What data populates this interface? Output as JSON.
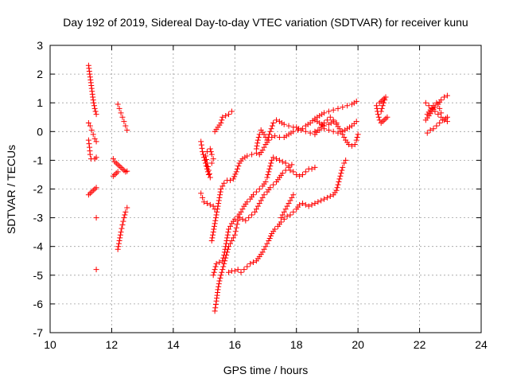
{
  "chart_data": {
    "type": "scatter",
    "title": "Day 192 of 2019, Sidereal Day-to-day VTEC variation (SDTVAR) for receiver kunu",
    "xlabel": "GPS time / hours",
    "ylabel": "SDTVAR / TECUs",
    "xlim": [
      10,
      24
    ],
    "ylim": [
      -7,
      3
    ],
    "xticks": [
      "10",
      "12",
      "14",
      "16",
      "18",
      "20",
      "22",
      "24"
    ],
    "yticks": [
      "-7",
      "-6",
      "-5",
      "-4",
      "-3",
      "-2",
      "-1",
      "0",
      "1",
      "2",
      "3"
    ],
    "grid": true,
    "marker": "+",
    "color": "#ff0000",
    "segments": [
      [
        [
          11.25,
          2.3
        ],
        [
          11.3,
          1.9
        ],
        [
          11.35,
          1.5
        ],
        [
          11.4,
          1.1
        ],
        [
          11.45,
          0.8
        ],
        [
          11.5,
          0.6
        ]
      ],
      [
        [
          11.25,
          0.3
        ],
        [
          11.3,
          0.2
        ],
        [
          11.35,
          0.05
        ],
        [
          11.4,
          -0.1
        ],
        [
          11.45,
          -0.25
        ],
        [
          11.5,
          -0.35
        ]
      ],
      [
        [
          11.25,
          -0.3
        ],
        [
          11.28,
          -0.55
        ],
        [
          11.3,
          -0.8
        ],
        [
          11.33,
          -0.95
        ]
      ],
      [
        [
          11.45,
          -0.95
        ],
        [
          11.5,
          -0.9
        ]
      ],
      [
        [
          11.25,
          -2.2
        ],
        [
          11.3,
          -2.15
        ],
        [
          11.35,
          -2.1
        ],
        [
          11.4,
          -2.05
        ],
        [
          11.45,
          -2.0
        ],
        [
          11.5,
          -1.95
        ]
      ],
      [
        [
          11.5,
          -3.0
        ]
      ],
      [
        [
          11.5,
          -4.8
        ]
      ],
      [
        [
          12.2,
          0.95
        ],
        [
          12.25,
          0.8
        ],
        [
          12.3,
          0.65
        ],
        [
          12.35,
          0.5
        ],
        [
          12.4,
          0.35
        ],
        [
          12.45,
          0.2
        ],
        [
          12.5,
          0.05
        ]
      ],
      [
        [
          12.05,
          -0.95
        ],
        [
          12.1,
          -1.05
        ],
        [
          12.15,
          -1.1
        ],
        [
          12.2,
          -1.15
        ],
        [
          12.25,
          -1.2
        ],
        [
          12.3,
          -1.25
        ],
        [
          12.35,
          -1.3
        ],
        [
          12.4,
          -1.35
        ],
        [
          12.45,
          -1.4
        ],
        [
          12.5,
          -1.38
        ]
      ],
      [
        [
          12.05,
          -1.55
        ],
        [
          12.1,
          -1.5
        ],
        [
          12.15,
          -1.45
        ],
        [
          12.2,
          -1.4
        ]
      ],
      [
        [
          12.2,
          -4.1
        ],
        [
          12.25,
          -3.8
        ],
        [
          12.3,
          -3.5
        ],
        [
          12.35,
          -3.25
        ],
        [
          12.4,
          -3.0
        ],
        [
          12.45,
          -2.8
        ],
        [
          12.5,
          -2.65
        ]
      ],
      [
        [
          14.9,
          -0.35
        ],
        [
          14.95,
          -0.7
        ],
        [
          15.0,
          -0.9
        ],
        [
          15.05,
          -1.1
        ],
        [
          15.1,
          -1.3
        ],
        [
          15.15,
          -1.5
        ],
        [
          15.2,
          -1.6
        ],
        [
          15.15,
          -1.35
        ],
        [
          15.1,
          -1.1
        ],
        [
          15.05,
          -0.85
        ],
        [
          15.1,
          -0.7
        ],
        [
          15.2,
          -0.6
        ],
        [
          15.25,
          -0.8
        ],
        [
          15.3,
          -0.95
        ],
        [
          15.25,
          -1.1
        ]
      ],
      [
        [
          14.9,
          -2.15
        ],
        [
          14.95,
          -2.3
        ],
        [
          15.0,
          -2.45
        ],
        [
          15.1,
          -2.5
        ],
        [
          15.2,
          -2.55
        ],
        [
          15.3,
          -2.6
        ],
        [
          15.35,
          -2.7
        ]
      ],
      [
        [
          15.35,
          0.0
        ],
        [
          15.45,
          0.15
        ],
        [
          15.55,
          0.3
        ],
        [
          15.6,
          0.5
        ],
        [
          15.7,
          0.55
        ],
        [
          15.8,
          0.6
        ],
        [
          15.9,
          0.7
        ]
      ],
      [
        [
          15.25,
          -3.8
        ],
        [
          15.3,
          -3.5
        ],
        [
          15.35,
          -3.2
        ],
        [
          15.4,
          -2.9
        ],
        [
          15.45,
          -2.6
        ],
        [
          15.5,
          -2.3
        ],
        [
          15.55,
          -2.0
        ],
        [
          15.65,
          -1.8
        ],
        [
          15.75,
          -1.7
        ],
        [
          15.85,
          -1.7
        ],
        [
          15.95,
          -1.65
        ],
        [
          16.05,
          -1.4
        ],
        [
          16.15,
          -1.1
        ],
        [
          16.25,
          -0.95
        ],
        [
          16.4,
          -0.85
        ],
        [
          16.55,
          -0.8
        ],
        [
          16.7,
          -0.75
        ],
        [
          16.8,
          -0.8
        ],
        [
          16.9,
          -0.65
        ],
        [
          17.0,
          -0.45
        ],
        [
          17.1,
          -0.3
        ],
        [
          17.2,
          -0.2
        ],
        [
          17.3,
          -0.15
        ],
        [
          17.45,
          -0.2
        ],
        [
          17.6,
          -0.2
        ],
        [
          17.75,
          -0.1
        ],
        [
          17.9,
          0.0
        ],
        [
          18.05,
          0.05
        ],
        [
          18.2,
          0.1
        ],
        [
          18.3,
          0.2
        ],
        [
          18.45,
          0.3
        ],
        [
          18.6,
          0.45
        ],
        [
          18.75,
          0.55
        ],
        [
          18.9,
          0.65
        ],
        [
          19.05,
          0.7
        ],
        [
          19.2,
          0.75
        ],
        [
          19.35,
          0.8
        ],
        [
          19.5,
          0.85
        ],
        [
          19.65,
          0.9
        ],
        [
          19.8,
          0.95
        ],
        [
          19.95,
          1.05
        ]
      ],
      [
        [
          16.7,
          -0.6
        ],
        [
          16.75,
          -0.3
        ],
        [
          16.8,
          -0.1
        ],
        [
          16.85,
          0.05
        ],
        [
          16.95,
          -0.1
        ],
        [
          17.05,
          -0.3
        ],
        [
          17.15,
          0.0
        ],
        [
          17.25,
          0.3
        ],
        [
          17.35,
          0.4
        ],
        [
          17.45,
          0.35
        ],
        [
          17.6,
          0.25
        ],
        [
          17.75,
          0.2
        ],
        [
          17.9,
          0.15
        ],
        [
          18.0,
          0.15
        ],
        [
          18.15,
          0.05
        ],
        [
          18.3,
          0.0
        ],
        [
          18.45,
          -0.05
        ],
        [
          18.6,
          0.0
        ],
        [
          18.75,
          0.05
        ],
        [
          18.9,
          0.1
        ],
        [
          19.05,
          0.05
        ],
        [
          19.2,
          0.0
        ],
        [
          19.35,
          -0.05
        ],
        [
          19.5,
          0.0
        ],
        [
          19.65,
          0.1
        ],
        [
          19.8,
          0.2
        ],
        [
          19.95,
          0.35
        ]
      ],
      [
        [
          18.6,
          0.4
        ],
        [
          18.75,
          0.3
        ],
        [
          18.9,
          0.2
        ],
        [
          19.05,
          0.25
        ],
        [
          19.2,
          0.35
        ],
        [
          19.3,
          0.25
        ],
        [
          19.4,
          0.1
        ],
        [
          19.5,
          -0.1
        ],
        [
          19.6,
          -0.3
        ],
        [
          19.7,
          -0.45
        ],
        [
          19.8,
          -0.5
        ],
        [
          19.9,
          -0.45
        ],
        [
          19.95,
          -0.3
        ],
        [
          20.0,
          -0.1
        ]
      ],
      [
        [
          18.6,
          -0.1
        ],
        [
          18.7,
          0.05
        ],
        [
          18.8,
          0.15
        ],
        [
          18.9,
          0.3
        ],
        [
          19.0,
          0.4
        ],
        [
          19.1,
          0.5
        ],
        [
          19.2,
          0.4
        ],
        [
          19.3,
          0.3
        ]
      ],
      [
        [
          15.3,
          -5.0
        ],
        [
          15.35,
          -4.8
        ],
        [
          15.4,
          -4.6
        ],
        [
          15.5,
          -4.55
        ],
        [
          15.6,
          -4.5
        ],
        [
          15.65,
          -4.3
        ],
        [
          15.7,
          -4.0
        ],
        [
          15.75,
          -3.7
        ],
        [
          15.8,
          -3.4
        ],
        [
          15.9,
          -3.2
        ],
        [
          16.0,
          -3.05
        ],
        [
          16.1,
          -2.95
        ],
        [
          16.2,
          -2.8
        ],
        [
          16.3,
          -2.6
        ],
        [
          16.4,
          -2.45
        ],
        [
          16.5,
          -2.35
        ],
        [
          16.6,
          -2.2
        ],
        [
          16.7,
          -2.1
        ],
        [
          16.8,
          -2.0
        ],
        [
          16.9,
          -1.9
        ],
        [
          17.0,
          -1.75
        ],
        [
          17.05,
          -1.6
        ],
        [
          17.1,
          -1.4
        ],
        [
          17.15,
          -1.2
        ],
        [
          17.2,
          -1.0
        ],
        [
          17.25,
          -0.9
        ],
        [
          17.35,
          -0.95
        ],
        [
          17.45,
          -1.0
        ],
        [
          17.55,
          -1.05
        ],
        [
          17.65,
          -1.1
        ],
        [
          17.75,
          -1.2
        ],
        [
          17.8,
          -1.35
        ],
        [
          17.9,
          -1.4
        ],
        [
          18.0,
          -1.5
        ],
        [
          18.1,
          -1.55
        ],
        [
          18.2,
          -1.5
        ],
        [
          18.3,
          -1.4
        ],
        [
          18.4,
          -1.3
        ],
        [
          18.5,
          -1.3
        ],
        [
          18.6,
          -1.25
        ]
      ],
      [
        [
          15.35,
          -6.25
        ],
        [
          15.4,
          -5.9
        ],
        [
          15.45,
          -5.5
        ],
        [
          15.5,
          -5.2
        ],
        [
          15.55,
          -5.0
        ],
        [
          15.6,
          -4.8
        ],
        [
          15.65,
          -4.6
        ],
        [
          15.7,
          -4.4
        ],
        [
          15.75,
          -4.2
        ],
        [
          15.8,
          -4.0
        ],
        [
          15.9,
          -3.8
        ],
        [
          16.0,
          -3.6
        ],
        [
          16.05,
          -3.35
        ],
        [
          16.1,
          -3.1
        ],
        [
          16.15,
          -3.0
        ],
        [
          16.25,
          -3.05
        ],
        [
          16.35,
          -3.1
        ],
        [
          16.45,
          -3.0
        ],
        [
          16.55,
          -2.9
        ],
        [
          16.65,
          -2.8
        ],
        [
          16.75,
          -2.6
        ],
        [
          16.85,
          -2.4
        ],
        [
          16.95,
          -2.2
        ],
        [
          17.05,
          -2.1
        ],
        [
          17.15,
          -1.95
        ],
        [
          17.25,
          -1.85
        ],
        [
          17.35,
          -1.75
        ],
        [
          17.45,
          -1.6
        ],
        [
          17.55,
          -1.45
        ],
        [
          17.65,
          -1.35
        ],
        [
          17.75,
          -1.25
        ],
        [
          17.85,
          -1.15
        ]
      ],
      [
        [
          15.8,
          -4.9
        ],
        [
          15.9,
          -4.85
        ],
        [
          16.0,
          -4.85
        ],
        [
          16.1,
          -4.8
        ],
        [
          16.2,
          -4.9
        ],
        [
          16.3,
          -4.8
        ],
        [
          16.4,
          -4.7
        ],
        [
          16.5,
          -4.6
        ],
        [
          16.6,
          -4.55
        ],
        [
          16.7,
          -4.5
        ],
        [
          16.8,
          -4.35
        ],
        [
          16.9,
          -4.2
        ],
        [
          17.0,
          -4.0
        ],
        [
          17.1,
          -3.8
        ],
        [
          17.2,
          -3.55
        ],
        [
          17.3,
          -3.4
        ],
        [
          17.4,
          -3.3
        ],
        [
          17.5,
          -3.15
        ],
        [
          17.6,
          -3.05
        ],
        [
          17.7,
          -2.95
        ],
        [
          17.8,
          -2.9
        ],
        [
          17.9,
          -2.8
        ],
        [
          18.0,
          -2.7
        ],
        [
          18.1,
          -2.55
        ],
        [
          18.2,
          -2.5
        ],
        [
          18.3,
          -2.55
        ],
        [
          18.4,
          -2.6
        ],
        [
          18.5,
          -2.55
        ],
        [
          18.6,
          -2.5
        ],
        [
          18.7,
          -2.45
        ],
        [
          18.8,
          -2.4
        ],
        [
          18.9,
          -2.35
        ],
        [
          19.0,
          -2.3
        ],
        [
          19.1,
          -2.25
        ],
        [
          19.2,
          -2.2
        ],
        [
          19.3,
          -2.05
        ],
        [
          19.35,
          -1.85
        ],
        [
          19.4,
          -1.65
        ],
        [
          19.45,
          -1.45
        ],
        [
          19.5,
          -1.25
        ],
        [
          19.55,
          -1.1
        ],
        [
          19.6,
          -1.0
        ]
      ],
      [
        [
          17.5,
          -3.0
        ],
        [
          17.6,
          -2.8
        ],
        [
          17.7,
          -2.6
        ],
        [
          17.8,
          -2.4
        ],
        [
          17.9,
          -2.2
        ]
      ],
      [
        [
          20.6,
          0.9
        ],
        [
          20.65,
          0.6
        ],
        [
          20.7,
          0.4
        ],
        [
          20.75,
          0.3
        ],
        [
          20.8,
          0.35
        ],
        [
          20.85,
          0.4
        ],
        [
          20.9,
          0.45
        ],
        [
          20.95,
          0.5
        ]
      ],
      [
        [
          20.7,
          1.0
        ],
        [
          20.75,
          1.05
        ],
        [
          20.8,
          1.1
        ],
        [
          20.85,
          1.15
        ],
        [
          20.9,
          1.2
        ],
        [
          20.8,
          0.9
        ],
        [
          20.75,
          0.7
        ]
      ],
      [
        [
          22.2,
          1.0
        ],
        [
          22.3,
          0.9
        ],
        [
          22.4,
          0.8
        ],
        [
          22.5,
          0.7
        ],
        [
          22.6,
          0.6
        ],
        [
          22.7,
          0.5
        ],
        [
          22.8,
          0.4
        ],
        [
          22.9,
          0.35
        ]
      ],
      [
        [
          22.2,
          0.4
        ],
        [
          22.3,
          0.55
        ],
        [
          22.4,
          0.7
        ],
        [
          22.5,
          0.85
        ],
        [
          22.6,
          0.95
        ],
        [
          22.7,
          1.1
        ],
        [
          22.8,
          1.2
        ],
        [
          22.9,
          1.25
        ]
      ],
      [
        [
          22.25,
          -0.05
        ],
        [
          22.35,
          0.05
        ],
        [
          22.45,
          0.1
        ],
        [
          22.55,
          0.2
        ],
        [
          22.65,
          0.3
        ],
        [
          22.75,
          0.4
        ],
        [
          22.85,
          0.45
        ],
        [
          22.9,
          0.5
        ]
      ],
      [
        [
          22.25,
          0.6
        ],
        [
          22.35,
          0.75
        ],
        [
          22.45,
          0.9
        ],
        [
          22.55,
          1.0
        ],
        [
          22.6,
          0.95
        ],
        [
          22.65,
          0.8
        ],
        [
          22.7,
          0.65
        ]
      ]
    ]
  }
}
